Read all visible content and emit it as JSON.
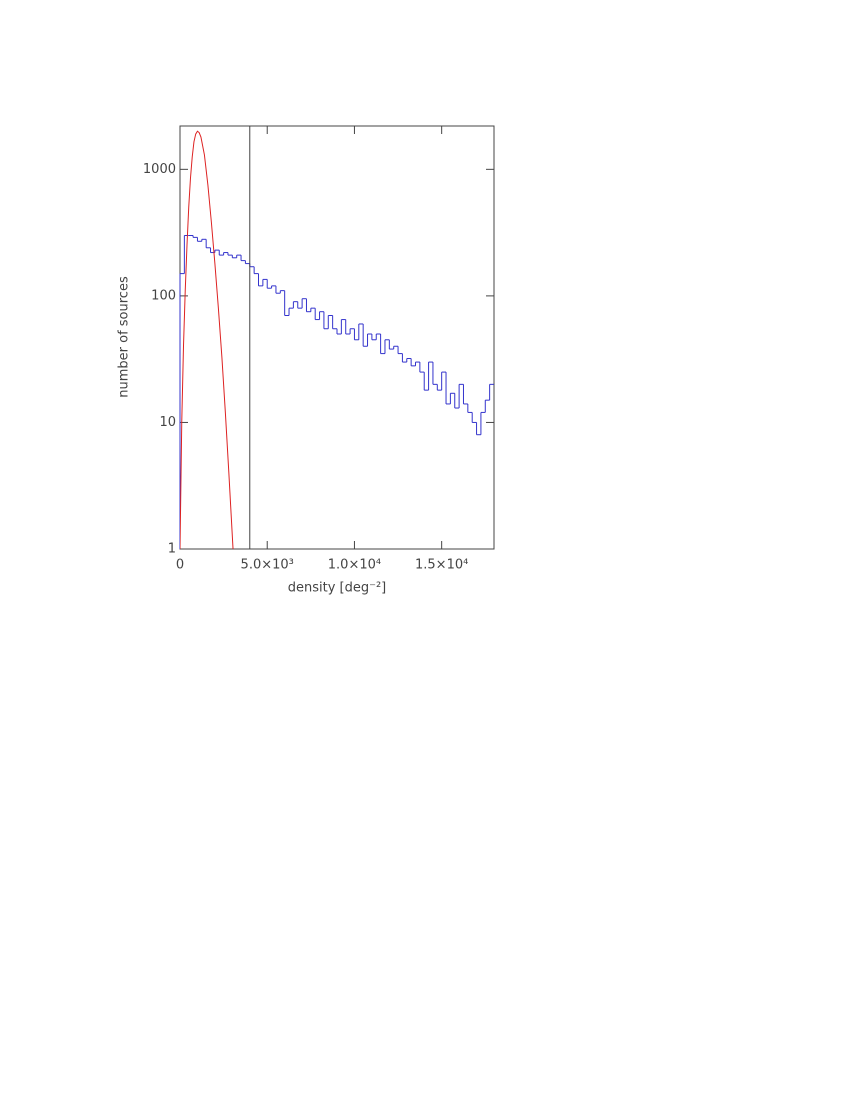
{
  "chart_data": {
    "type": "histogram",
    "xlabel": "density [deg⁻²]",
    "ylabel": "number of sources",
    "bins": [
      0,
      250,
      500,
      750,
      1000,
      1250,
      1500,
      1750,
      2000,
      2250,
      2500,
      2750,
      3000,
      3250,
      3500,
      3750,
      4000,
      4250,
      4500,
      4750,
      5000,
      5250,
      5500,
      5750,
      6000,
      6250,
      6500,
      6750,
      7000,
      7250,
      7500,
      7750,
      8000,
      8250,
      8500,
      8750,
      9000,
      9250,
      9500,
      9750,
      10000,
      10250,
      10500,
      10750,
      11000,
      11250,
      11500,
      11750,
      12000,
      12250,
      12500,
      12750,
      13000,
      13250,
      13500,
      13750,
      14000,
      14250,
      14500,
      14750,
      15000,
      15250,
      15500,
      15750,
      16000,
      16250,
      16500,
      16750,
      17000,
      17250,
      17500,
      17750,
      18000
    ],
    "values": [
      150,
      300,
      300,
      290,
      270,
      280,
      240,
      220,
      230,
      210,
      220,
      210,
      200,
      210,
      190,
      180,
      170,
      150,
      120,
      135,
      115,
      120,
      105,
      110,
      70,
      80,
      90,
      80,
      95,
      75,
      80,
      65,
      75,
      55,
      70,
      55,
      50,
      65,
      50,
      55,
      45,
      60,
      40,
      50,
      45,
      50,
      35,
      45,
      38,
      40,
      35,
      30,
      32,
      28,
      30,
      25,
      18,
      30,
      20,
      18,
      25,
      14,
      17,
      13,
      20,
      14,
      12,
      10,
      8,
      12,
      15,
      20
    ],
    "color": "#3333cc",
    "curve": {
      "x": [
        0,
        100,
        200,
        300,
        400,
        500,
        600,
        700,
        800,
        900,
        1000,
        1100,
        1200,
        1400,
        1600,
        1800,
        2000,
        2200,
        2400,
        2600,
        2800,
        3040
      ],
      "values": [
        1,
        10,
        40,
        110,
        250,
        500,
        850,
        1250,
        1650,
        1900,
        2000,
        1950,
        1800,
        1300,
        750,
        380,
        180,
        80,
        33,
        12,
        4,
        1
      ],
      "color": "#dd2222"
    },
    "vline": {
      "x": 4000,
      "color": "#444444"
    },
    "xlim": [
      0,
      18000
    ],
    "ylim": [
      1,
      2200
    ],
    "log_y": true,
    "xticks": [
      0,
      {
        "value": 5000,
        "label": "5.0×10³"
      },
      {
        "value": 10000,
        "label": "1.0×10⁴"
      },
      {
        "value": 15000,
        "label": "1.5×10⁴"
      }
    ],
    "yticks": [
      1,
      10,
      100,
      1000
    ]
  }
}
